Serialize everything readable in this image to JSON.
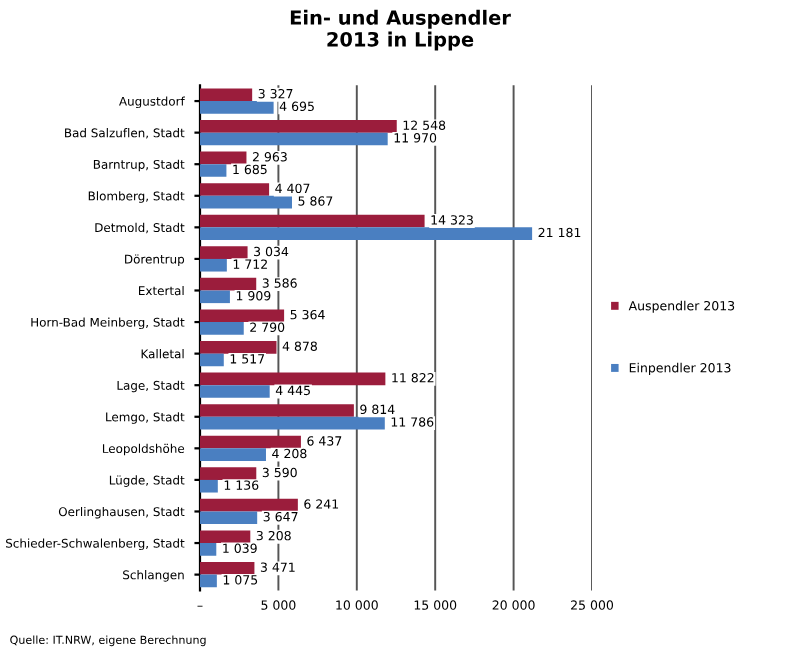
{
  "chart_data": {
    "type": "bar",
    "orientation": "horizontal",
    "title": "Ein- und Auspendler\n2013 in Lippe",
    "categories": [
      "Augustdorf",
      "Bad Salzuflen, Stadt",
      "Barntrup, Stadt",
      "Blomberg, Stadt",
      "Detmold, Stadt",
      "Dörentrup",
      "Extertal",
      "Horn-Bad Meinberg, Stadt",
      "Kalletal",
      "Lage, Stadt",
      "Lemgo, Stadt",
      "Leopoldshöhe",
      "Lügde, Stadt",
      "Oerlinghausen, Stadt",
      "Schieder-Schwalenberg, Stadt",
      "Schlangen"
    ],
    "series": [
      {
        "name": "Auspendler 2013",
        "color": "#9b1d3c",
        "values": [
          3327,
          12548,
          2963,
          4407,
          14323,
          3034,
          3586,
          5364,
          4878,
          11822,
          9814,
          6437,
          3590,
          6241,
          3208,
          3471
        ],
        "value_labels": [
          "3 327",
          "12 548",
          "2 963",
          "4 407",
          "14 323",
          "3 034",
          "3 586",
          "5 364",
          "4 878",
          "11 822",
          "9 814",
          "6 437",
          "3 590",
          "6 241",
          "3 208",
          "3 471"
        ]
      },
      {
        "name": "Einpendler 2013",
        "color": "#4a7fc1",
        "values": [
          4695,
          11970,
          1685,
          5867,
          21181,
          1712,
          1909,
          2790,
          1517,
          4445,
          11786,
          4208,
          1136,
          3647,
          1039,
          1075
        ],
        "value_labels": [
          "4 695",
          "11 970",
          "1 685",
          "5 867",
          "21 181",
          "1 712",
          "1 909",
          "2 790",
          "1 517",
          "4 445",
          "11 786",
          "4 208",
          "1 136",
          "3 647",
          "1 039",
          "1 075"
        ]
      }
    ],
    "xlim": [
      0,
      25000
    ],
    "xticks": [
      {
        "value": 0,
        "label": "–"
      },
      {
        "value": 5000,
        "label": "5 000"
      },
      {
        "value": 10000,
        "label": "10 000"
      },
      {
        "value": 15000,
        "label": "15 000"
      },
      {
        "value": 20000,
        "label": "20 000"
      },
      {
        "value": 25000,
        "label": "25 000"
      }
    ],
    "grid": "x",
    "legend": "right",
    "annotations": [
      "Quelle: IT.NRW, eigene Berechnung"
    ]
  }
}
